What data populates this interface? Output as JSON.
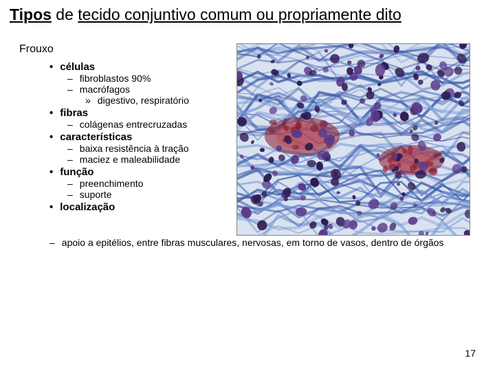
{
  "title": {
    "bold_prefix": "Tipos",
    "rest": " de ",
    "underlined_tail": "tecido conjuntivo comum ou propriamente dito"
  },
  "heading": "Frouxo",
  "sections": [
    {
      "label": "células",
      "items": [
        {
          "text": "fibroblastos 90%"
        },
        {
          "text": "macrófagos",
          "sub": [
            "digestivo, respiratório"
          ]
        }
      ]
    },
    {
      "label": "fibras",
      "items": [
        {
          "text": "colágenas entrecruzadas"
        }
      ]
    },
    {
      "label": "características",
      "items": [
        {
          "text": "baixa resistência à tração"
        },
        {
          "text": "maciez e maleabilidade"
        }
      ]
    },
    {
      "label": "função",
      "items": [
        {
          "text": "preenchimento"
        },
        {
          "text": "suporte"
        }
      ]
    },
    {
      "label": "localização",
      "items": []
    }
  ],
  "below_item": "apoio a epitélios, entre fibras musculares, nervosas, em torno de vasos, dentro de órgãos",
  "page_number": "17",
  "image": {
    "description": "histology-loose-connective-tissue",
    "palette": {
      "fiber_blue_light": "#7a9ad6",
      "fiber_blue_dark": "#3a5aa8",
      "nucleus_purple_dark": "#2e1a52",
      "nucleus_purple_mid": "#5a3a8a",
      "vessel_red": "#8a1a2a",
      "vessel_red_light": "#c04a5a",
      "background_pale": "#dae2f0"
    }
  }
}
